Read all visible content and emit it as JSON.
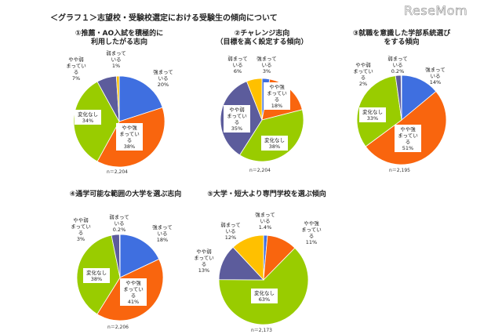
{
  "header": {
    "title": "＜グラフ１＞志望校・受験校選定における受験生の傾向について",
    "logo": "ReseMom"
  },
  "chart_data": [
    {
      "type": "pie",
      "title_lines": [
        "①推薦・AO入試を積極的に",
        "利用したがる志向"
      ],
      "n": "n＝2,204",
      "categories": [
        "強まっている",
        "やや強まっている",
        "変化なし",
        "やや弱まっている",
        "弱まっている"
      ],
      "label_lines": [
        [
          "強まって",
          "いる"
        ],
        [
          "やや強",
          "まってい",
          "る"
        ],
        [
          "変化なし"
        ],
        [
          "やや弱",
          "まってい",
          "る"
        ],
        [
          "弱まって",
          "いる"
        ]
      ],
      "values": [
        20,
        38,
        34,
        7,
        1
      ],
      "value_labels": [
        "20%",
        "38%",
        "34%",
        "7%",
        "1%"
      ]
    },
    {
      "type": "pie",
      "title_lines": [
        "②チャレンジ志向",
        "（目標を高く設定する傾向）"
      ],
      "n": "n＝2,204",
      "categories": [
        "強まっている",
        "やや強まっている",
        "変化なし",
        "やや弱まっている",
        "弱まっている"
      ],
      "label_lines": [
        [
          "強まって",
          "いる"
        ],
        [
          "やや強",
          "まってい",
          "る"
        ],
        [
          "変化なし"
        ],
        [
          "やや弱",
          "まってい",
          "る"
        ],
        [
          "弱まって",
          "いる"
        ]
      ],
      "values": [
        3,
        18,
        38,
        35,
        6
      ],
      "value_labels": [
        "3%",
        "18%",
        "38%",
        "35%",
        "6%"
      ]
    },
    {
      "type": "pie",
      "title_lines": [
        "③就職を意識した学部系統選び",
        "をする傾向"
      ],
      "n": "n＝2,195",
      "categories": [
        "強まっている",
        "やや強まっている",
        "変化なし",
        "やや弱まっている",
        "弱まっている"
      ],
      "label_lines": [
        [
          "強まって",
          "いる"
        ],
        [
          "やや強",
          "まってい",
          "る"
        ],
        [
          "変化なし"
        ],
        [
          "やや弱",
          "まってい",
          "る"
        ],
        [
          "弱まって",
          "いる"
        ]
      ],
      "values": [
        14,
        51,
        33,
        2,
        0.2
      ],
      "value_labels": [
        "14%",
        "51%",
        "33%",
        "2%",
        "0.2%"
      ]
    },
    {
      "type": "pie",
      "title_lines": [
        "④通学可能な範囲の大学を選ぶ志向"
      ],
      "n": "n＝2,206",
      "categories": [
        "強まっている",
        "やや強まっている",
        "変化なし",
        "やや弱まっている",
        "弱まっている"
      ],
      "label_lines": [
        [
          "強まって",
          "いる"
        ],
        [
          "やや強",
          "まってい",
          "る"
        ],
        [
          "変化なし"
        ],
        [
          "やや弱",
          "まってい",
          "る"
        ],
        [
          "弱まって",
          "いる"
        ]
      ],
      "values": [
        18,
        41,
        38,
        3,
        0.2
      ],
      "value_labels": [
        "18%",
        "41%",
        "38%",
        "3%",
        "0.2%"
      ]
    },
    {
      "type": "pie",
      "title_lines": [
        "⑤大学・短大より専門学校を選ぶ傾向"
      ],
      "n": "n＝2,173",
      "categories": [
        "強まっている",
        "やや強まっている",
        "変化なし",
        "やや弱まっている",
        "弱まっている"
      ],
      "label_lines": [
        [
          "強まって",
          "いる"
        ],
        [
          "やや強",
          "まってい",
          "る"
        ],
        [
          "変化なし"
        ],
        [
          "やや弱",
          "まってい",
          "る"
        ],
        [
          "弱まって",
          "いる"
        ]
      ],
      "values": [
        1.4,
        11,
        63,
        13,
        12
      ],
      "value_labels": [
        "1.4%",
        "11%",
        "63%",
        "13%",
        "12%"
      ]
    }
  ],
  "colors": [
    "#3f6fe0",
    "#f9650e",
    "#99cc00",
    "#5c5c9c",
    "#ffc000"
  ]
}
